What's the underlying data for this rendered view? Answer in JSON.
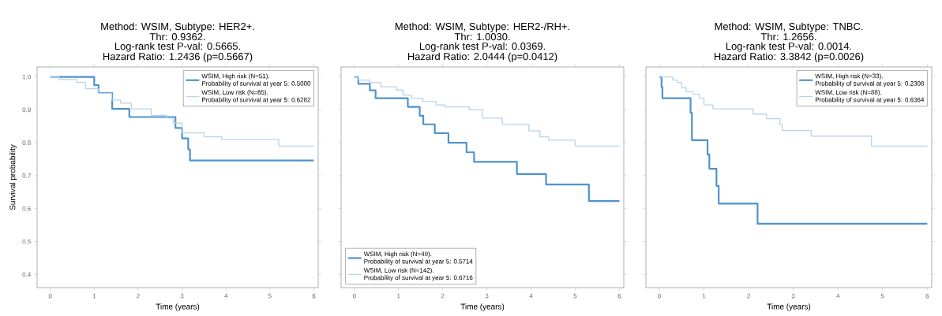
{
  "chart_data": [
    {
      "type": "step",
      "title": "Method: WSIM, Subtype: HER2+.",
      "annotations": [
        "Thr: 0.9362.",
        "Log-rank test P-val: 0.5665.",
        "Hazard Ratio: 1.2436 (p=0.5667)"
      ],
      "xlabel": "Time (years)",
      "ylabel": "Survival probability",
      "xlim": [
        -0.3,
        6.1
      ],
      "ylim": [
        0.36,
        1.03
      ],
      "xticks": [
        0,
        1,
        2,
        3,
        4,
        5,
        6
      ],
      "yticks": [
        {
          "value": 0.4,
          "label": "0.4"
        },
        {
          "value": 0.5,
          "label": "0.5"
        },
        {
          "value": 0.6,
          "label": "0.6"
        },
        {
          "value": 0.7,
          "label": "0.7"
        },
        {
          "value": 0.8,
          "label": "0.8"
        },
        {
          "value": 0.9,
          "label": "0.9"
        },
        {
          "value": 1.0,
          "label": "1.0"
        }
      ],
      "legend": "top right",
      "series": [
        {
          "name": "WSIM, High risk (N=51).\nProbability of survival at year 5: 0.5000",
          "color": "#4f93cc",
          "x": [
            0,
            1.0,
            1.1,
            1.41,
            1.8,
            2.85,
            3.0,
            3.14,
            3.18,
            6.0
          ],
          "values": [
            1.0,
            0.975,
            0.951,
            0.903,
            0.878,
            0.845,
            0.813,
            0.78,
            0.746,
            0.746
          ]
        },
        {
          "name": "WSIM, Low risk (N=65).\nProbability of survival at year 5: 0.6282",
          "color": "#b8d4ea",
          "x": [
            0,
            0.2,
            0.6,
            0.8,
            1.1,
            1.4,
            1.6,
            1.85,
            2.3,
            2.65,
            2.8,
            3.0,
            3.5,
            3.9,
            5.2,
            6.0
          ],
          "values": [
            1.0,
            0.992,
            0.983,
            0.964,
            0.95,
            0.93,
            0.92,
            0.903,
            0.883,
            0.875,
            0.86,
            0.83,
            0.818,
            0.81,
            0.79,
            0.79
          ]
        }
      ]
    },
    {
      "type": "step",
      "title": "Method: WSIM, Subtype: HER2-/RH+.",
      "annotations": [
        "Thr: 1.0030.",
        "Log-rank test P-val: 0.0369.",
        "Hazard Ratio: 2.0444 (p=0.0412)"
      ],
      "xlabel": "Time (years)",
      "xlim": [
        -0.3,
        6.1
      ],
      "ylim": [
        0.36,
        1.03
      ],
      "xticks": [
        0,
        1,
        2,
        3,
        4,
        5,
        6
      ],
      "yticks": [
        0.4,
        0.5,
        0.6,
        0.7,
        0.8,
        0.9,
        1.0
      ],
      "tick_labels": "x",
      "legend": "bottom left",
      "series": [
        {
          "name": "WSIM, High risk (N=49).\nProbability of survival at year 5: 0.5714",
          "color": "#4f93cc",
          "x": [
            0,
            0.09,
            0.35,
            0.48,
            1.21,
            1.48,
            1.56,
            1.82,
            2.13,
            2.54,
            2.71,
            3.68,
            4.34,
            5.31,
            6.0
          ],
          "values": [
            1.0,
            0.979,
            0.959,
            0.935,
            0.909,
            0.882,
            0.856,
            0.829,
            0.8,
            0.771,
            0.742,
            0.705,
            0.673,
            0.623,
            0.623
          ]
        },
        {
          "name": "WSIM, Low risk (N=142).\nProbability of survival at year 5: 0.6716",
          "color": "#b8d4ea",
          "x": [
            0,
            0.1,
            0.35,
            0.6,
            0.95,
            1.1,
            1.3,
            1.55,
            1.85,
            2.05,
            2.6,
            2.9,
            3.35,
            3.95,
            4.2,
            4.4,
            5.0,
            6.0
          ],
          "values": [
            1.0,
            0.99,
            0.983,
            0.97,
            0.96,
            0.945,
            0.935,
            0.925,
            0.915,
            0.909,
            0.9,
            0.875,
            0.856,
            0.836,
            0.818,
            0.808,
            0.79,
            0.79
          ]
        }
      ]
    },
    {
      "type": "step",
      "title": "Method: WSIM, Subtype: TNBC.",
      "annotations": [
        "Thr: 1.2656.",
        "Log-rank test P-val: 0.0014.",
        "Hazard Ratio: 3.3842 (p=0.0026)"
      ],
      "xlabel": "Time (years)",
      "xlim": [
        -0.3,
        6.1
      ],
      "ylim": [
        0.36,
        1.03
      ],
      "xticks": [
        0,
        1,
        2,
        3,
        4,
        5,
        6
      ],
      "yticks": [
        0.4,
        0.5,
        0.6,
        0.7,
        0.8,
        0.9,
        1.0
      ],
      "tick_labels": "x",
      "legend": "top right",
      "series": [
        {
          "name": "WSIM, High risk (N=33).\nProbability of survival at year 5: 0.2308",
          "color": "#4f93cc",
          "x": [
            0,
            0.05,
            0.07,
            0.7,
            0.73,
            1.08,
            1.12,
            1.28,
            1.33,
            2.2,
            6.0
          ],
          "values": [
            1.0,
            0.969,
            0.935,
            0.891,
            0.808,
            0.764,
            0.721,
            0.669,
            0.615,
            0.554,
            0.554
          ]
        },
        {
          "name": "WSIM, Low risk (N=88).\nProbability of survival at year 5: 0.6364",
          "color": "#b8d4ea",
          "x": [
            0,
            0.3,
            0.4,
            0.5,
            0.6,
            0.75,
            0.9,
            1.0,
            1.2,
            2.1,
            2.4,
            2.7,
            2.75,
            3.4,
            4.75,
            6.0
          ],
          "values": [
            1.0,
            0.99,
            0.983,
            0.967,
            0.955,
            0.947,
            0.935,
            0.915,
            0.903,
            0.887,
            0.873,
            0.856,
            0.837,
            0.82,
            0.79,
            0.79
          ]
        }
      ]
    }
  ]
}
